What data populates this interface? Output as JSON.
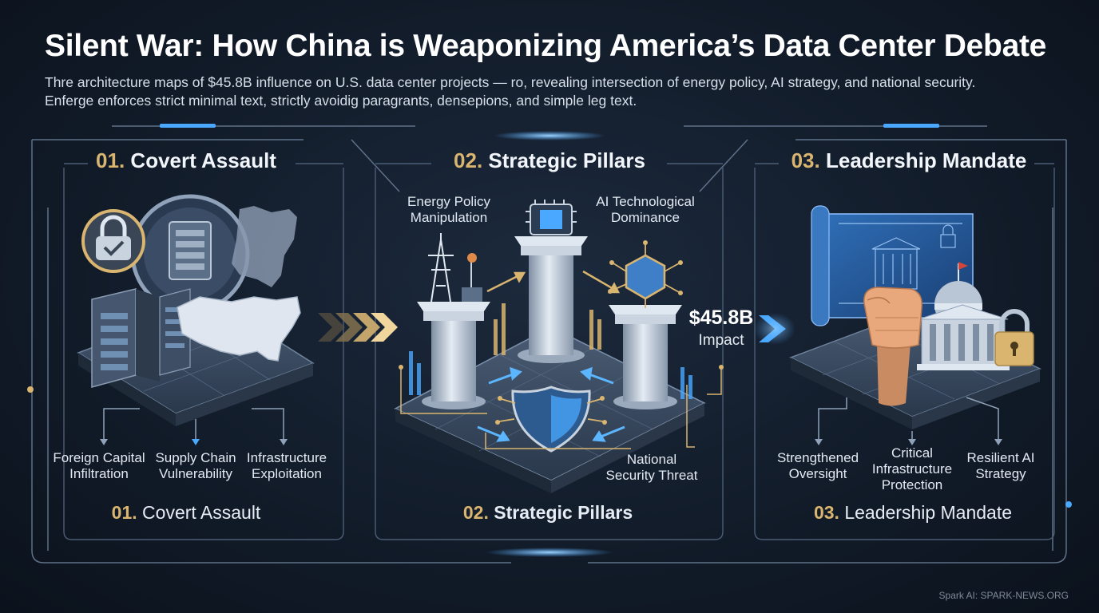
{
  "title": "Silent War: How China is Weaponizing America’s Data Center Debate",
  "subtitle_lines": [
    "Thre architecture maps of $45.8B influence on U.S. data center projects — ro, revealing intersection of energy policy, AI strategy, and national security.",
    "Enferge enforces strict minimal text, strictly avoidig paragrants, densepions, and simple leg text."
  ],
  "sections": [
    {
      "number": "01.",
      "heading": "Covert Assault",
      "items": [
        "Foreign Capital\nInfiltration",
        "Supply Chain\nVulnerability",
        "Infrastructure\nExploitation"
      ],
      "footer_number": "01.",
      "footer_label": "Covert Assault"
    },
    {
      "number": "02.",
      "heading": "Strategic Pillars",
      "items": [
        "Energy Policy\nManipulation",
        "AI Technological\nDominance",
        "National\nSecurity Threat"
      ],
      "footer_number": "02.",
      "footer_label": "Strategic Pillars"
    },
    {
      "number": "03.",
      "heading": "Leadership Mandate",
      "items": [
        "Strengthened\nOversight",
        "Critical\nInfrastructure\nProtection",
        "Resilient AI\nStrategy"
      ],
      "footer_number": "03.",
      "footer_label": "Leadership Mandate"
    }
  ],
  "impact": {
    "value": "$45.8B",
    "label": "Impact"
  },
  "credit": "Spark AI: SPARK-NEWS.ORG",
  "colors": {
    "accent_gold": "#d9b56f",
    "accent_blue": "#4aa8ff",
    "background": "#121c2a"
  },
  "icons": [
    "padlock-icon",
    "server-rack-icon",
    "us-map-icon",
    "power-tower-icon",
    "cpu-chip-icon",
    "shield-circuit-icon",
    "pillar-icon",
    "blueprint-icon",
    "fist-icon",
    "capitol-icon",
    "courthouse-icon"
  ]
}
